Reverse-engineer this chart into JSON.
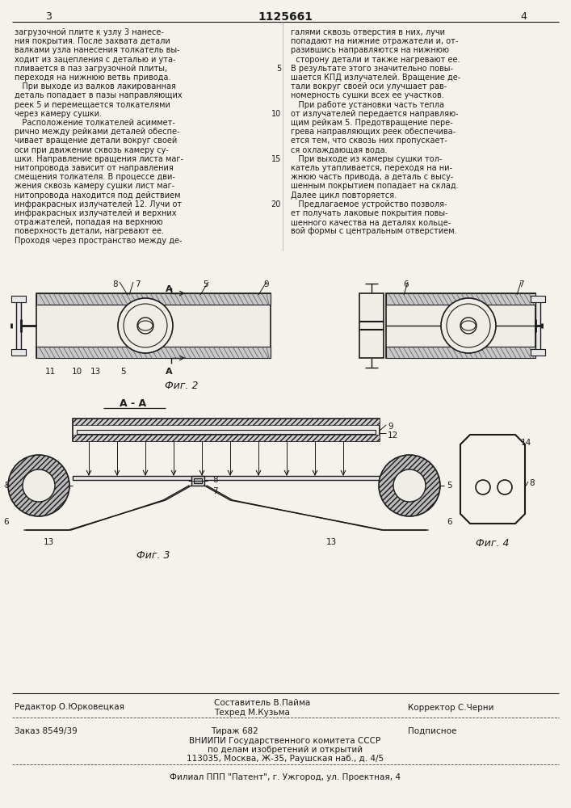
{
  "page_width": 7.07,
  "page_height": 10.0,
  "bg_color": "#f5f2ec",
  "text_color": "#1a1a1a",
  "line_color": "#1a1a1a",
  "header_number_left": "3",
  "header_number_right": "4",
  "header_patent": "1125661",
  "fig2_label": "Фиг. 2",
  "fig3_label": "Фиг. 3",
  "fig4_label": "Фиг. 4",
  "section_label": "А - А",
  "body_text_col1": [
    "загрузочной плите к узлу 3 нанесе-",
    "ния покрытия. После захвата детали",
    "валками узла нанесения толкатель вы-",
    "ходит из зацепления с деталью и ута-",
    "пливается в паз загрузочной плиты,",
    "переходя на нижнюю ветвь привода.",
    "   При выходе из валков лакированная",
    "деталь попадает в пазы направляющих",
    "реек 5 и перемещается толкателями",
    "через камеру сушки.",
    "   Расположение толкателей асиммет-",
    "рично между рейками деталей обеспе-",
    "чивает вращение детали вокруг своей",
    "оси при движении сквозь камеру су-",
    "шки. Направление вращения листа маг-",
    "нитопровода зависит от направления",
    "смещения толкателя. В процессе дви-",
    "жения сквозь камеру сушки лист маг-",
    "нитопровода находится под действием",
    "инфракрасных излучателей 12. Лучи от",
    "инфракрасных излучателей и верхних",
    "отражателей, попадая на верхнюю",
    "поверхность детали, нагревают ее.",
    "Проходя через пространство между де-"
  ],
  "body_text_col2": [
    "галями сквозь отверстия в них, лучи",
    "попадают на нижние отражатели и, от-",
    "разившись направляются на нижнюю",
    "  сторону детали и также нагревают ее.",
    "В результате этого значительно повы-",
    "шается КПД излучателей. Вращение де-",
    "тали вокруг своей оси улучшает рав-",
    "номерность сушки всех ее участков.",
    "   При работе установки часть тепла",
    "от излучателей передается направляю-",
    "щим рейкам 5. Предотвращение пере-",
    "грева направляющих реек обеспечива-",
    "ется тем, что сквозь них пропускает-",
    "ся охлаждающая вода.",
    "   При выходе из камеры сушки тол-",
    "катель утапливается, переходя на ни-",
    "жнюю часть привода, а деталь с высу-",
    "шенным покрытием попадает на склад.",
    "Далее цикл повторяется.",
    "   Предлагаемое устройство позволя-",
    "ет получать лаковые покрытия повы-",
    "шенного качества на деталях кольце-",
    "вой формы с центральным отверстием."
  ]
}
